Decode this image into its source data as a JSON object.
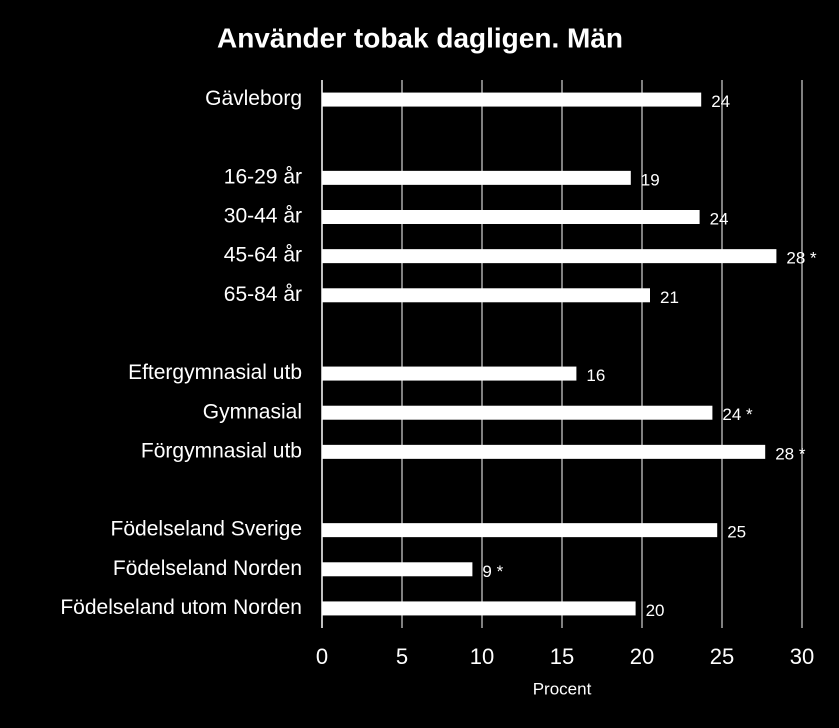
{
  "chart_data": {
    "type": "barh",
    "title": "Använder tobak dagligen. Män",
    "x_label": "Procent",
    "categories": [
      "Gävleborg",
      null,
      "16-29 år",
      "30-44 år",
      "45-64 år",
      "65-84 år",
      null,
      "Eftergymnasial utb",
      "Gymnasial",
      "Förgymnasial utb",
      null,
      "Födelseland Sverige",
      "Födelseland Norden",
      "Födelseland utom Norden"
    ],
    "values": [
      23.7,
      null,
      19.3,
      23.6,
      28.4,
      20.5,
      null,
      15.9,
      24.4,
      27.7,
      null,
      24.7,
      9.4,
      19.6
    ],
    "value_labels": [
      "24",
      null,
      "19",
      "24",
      "28 *",
      "21",
      null,
      "16",
      "24 *",
      "28 *",
      null,
      "25",
      "9 *",
      "20"
    ],
    "color": "#ffffff",
    "xlim": [
      0,
      30
    ],
    "xticks": [
      0,
      5,
      10,
      15,
      20,
      25,
      30
    ],
    "grid": true
  }
}
